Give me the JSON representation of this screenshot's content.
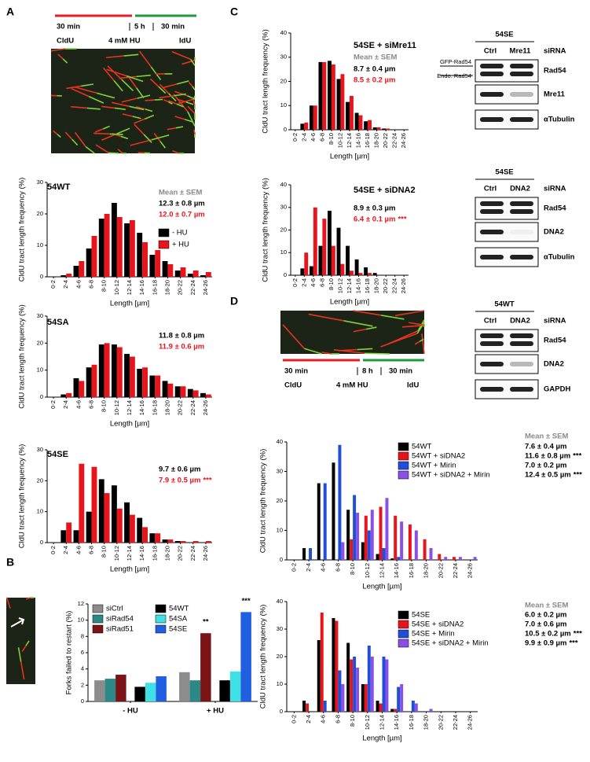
{
  "panels": [
    "A",
    "B",
    "C",
    "D"
  ],
  "schematics": [
    {
      "pulse1": "30 min",
      "treatment_time": "5 h",
      "pulse2": "30 min",
      "label1": "CldU",
      "treatment": "4 mM HU",
      "label2": "IdU"
    },
    {
      "pulse1": "30 min",
      "treatment_time": "8 h",
      "pulse2": "30 min",
      "label1": "CldU",
      "treatment": "4 mM HU",
      "label2": "IdU"
    }
  ],
  "blots": [
    {
      "title": "54SE",
      "lanes": [
        "Ctrl",
        "Mre11"
      ],
      "lane_label": "siRNA",
      "rows": [
        "Rad54",
        "Mre11",
        "αTubulin"
      ],
      "side_labels": [
        "GFP-Rad54",
        "Endo. Rad54"
      ]
    },
    {
      "title": "54SE",
      "lanes": [
        "Ctrl",
        "DNA2"
      ],
      "lane_label": "siRNA",
      "rows": [
        "Rad54",
        "DNA2",
        "αTubulin"
      ]
    },
    {
      "title": "54WT",
      "lanes": [
        "Ctrl",
        "DNA2"
      ],
      "lane_label": "siRNA",
      "rows": [
        "Rad54",
        "DNA2",
        "GAPDH"
      ]
    }
  ],
  "chart_data": [
    {
      "type": "bar",
      "title": "54WT",
      "categories": [
        "0-2",
        "2-4",
        "4-6",
        "6-8",
        "8-10",
        "10-12",
        "12-14",
        "14-16",
        "16-18",
        "18-20",
        "20-22",
        "22-24",
        "24-26"
      ],
      "series": [
        {
          "name": "- HU",
          "color": "#000000",
          "values": [
            0,
            0.5,
            3.5,
            9,
            18.5,
            23.5,
            17,
            14,
            7,
            5,
            2,
            1,
            0.5
          ]
        },
        {
          "name": "+ HU",
          "color": "#e8141c",
          "values": [
            0,
            1,
            5,
            13,
            20,
            19,
            18,
            11,
            8.5,
            4,
            3,
            2,
            1.5
          ]
        }
      ],
      "ylim": [
        0,
        30
      ],
      "yticks": [
        0,
        10,
        20,
        30
      ],
      "legend": true,
      "xlabel": "Length [µm]",
      "ylabel": "CldU tract length frequency (%)",
      "mean_header": "Mean  ± SEM",
      "means": [
        {
          "text": "12.3 ± 0.8 µm",
          "color": "#000000"
        },
        {
          "text": "12.0 ± 0.7 µm",
          "color": "#e8141c"
        }
      ]
    },
    {
      "type": "bar",
      "title": "54SA",
      "categories": [
        "0-2",
        "2-4",
        "4-6",
        "6-8",
        "8-10",
        "10-12",
        "12-14",
        "14-16",
        "16-18",
        "18-20",
        "20-22",
        "22-24",
        "24-26"
      ],
      "series": [
        {
          "color": "#000000",
          "values": [
            0,
            1,
            7,
            11,
            19.5,
            19.5,
            16,
            10.5,
            8,
            6,
            4,
            3,
            1.5
          ]
        },
        {
          "color": "#e8141c",
          "values": [
            0,
            1.5,
            6,
            12,
            20,
            18.5,
            15,
            11,
            8,
            5,
            4,
            2.5,
            1
          ]
        }
      ],
      "ylim": [
        0,
        30
      ],
      "yticks": [
        0,
        10,
        20,
        30
      ],
      "xlabel": "Length [µm]",
      "ylabel": "CldU tract length frequency (%)",
      "means": [
        {
          "text": "11.8 ± 0.8 µm",
          "color": "#000000"
        },
        {
          "text": "11.9 ± 0.6 µm",
          "color": "#e8141c"
        }
      ]
    },
    {
      "type": "bar",
      "title": "54SE",
      "categories": [
        "0-2",
        "2-4",
        "4-6",
        "6-8",
        "8-10",
        "10-12",
        "12-14",
        "14-16",
        "16-18",
        "18-20",
        "20-22",
        "22-24",
        "24-26"
      ],
      "series": [
        {
          "color": "#000000",
          "values": [
            0,
            4,
            4,
            10,
            20.5,
            18.5,
            13,
            8,
            3,
            1,
            0.5,
            0,
            0
          ]
        },
        {
          "color": "#e8141c",
          "values": [
            0,
            6.5,
            25.5,
            24.5,
            16,
            11,
            9,
            5,
            3,
            1,
            0.5,
            0.5,
            0.5
          ]
        }
      ],
      "ylim": [
        0,
        30
      ],
      "yticks": [
        0,
        10,
        20,
        30
      ],
      "xlabel": "Length [µm]",
      "ylabel": "CldU tract length frequency (%)",
      "means": [
        {
          "text": "9.7 ± 0.6 µm",
          "color": "#000000"
        },
        {
          "text": "7.9 ± 0.5 µm",
          "color": "#e8141c",
          "mark": "***"
        }
      ]
    },
    {
      "type": "bar",
      "categories": [
        "- HU",
        "+ HU"
      ],
      "series": [
        {
          "name": "siCtrl",
          "color": "#8c8c8c",
          "values": [
            2.6,
            3.6
          ]
        },
        {
          "name": "siRad54",
          "color": "#2b8a88",
          "values": [
            2.8,
            2.6
          ]
        },
        {
          "name": "siRad51",
          "color": "#7a1416",
          "values": [
            3.3,
            8.4
          ],
          "significance": [
            null,
            "**"
          ]
        },
        {
          "name": "54WT",
          "color": "#000000",
          "values": [
            1.8,
            2.6
          ]
        },
        {
          "name": "54SA",
          "color": "#3fe0e6",
          "values": [
            2.3,
            3.7
          ]
        },
        {
          "name": "54SE",
          "color": "#1f5fe0",
          "values": [
            3.1,
            11.0
          ],
          "significance": [
            null,
            "***"
          ]
        }
      ],
      "ylim": [
        0,
        12
      ],
      "yticks": [
        0,
        2,
        4,
        6,
        8,
        10,
        12
      ],
      "legend": true,
      "ylabel": "Forks failed to restart (%)"
    },
    {
      "type": "bar",
      "title": "54SE + siMre11",
      "categories": [
        "0-2",
        "2-4",
        "4-6",
        "6-8",
        "8-10",
        "10-12",
        "12-14",
        "14-16",
        "16-18",
        "18-20",
        "20-22",
        "22-24",
        "24-26"
      ],
      "series": [
        {
          "color": "#000000",
          "values": [
            0,
            2.5,
            10,
            28,
            28.5,
            21,
            11.5,
            7,
            3.5,
            1,
            0.5,
            0,
            0
          ]
        },
        {
          "color": "#e8141c",
          "values": [
            0,
            3,
            10,
            28,
            27,
            23,
            14,
            6,
            4,
            1,
            0.5,
            0,
            0
          ]
        }
      ],
      "ylim": [
        0,
        40
      ],
      "yticks": [
        0,
        10,
        20,
        30,
        40
      ],
      "xlabel": "Length [µm]",
      "ylabel": "CldU tract length frequency (%)",
      "mean_header": "Mean  ± SEM",
      "means": [
        {
          "text": "8.7 ± 0.4 µm",
          "color": "#000000"
        },
        {
          "text": "8.5 ± 0.2 µm",
          "color": "#e8141c"
        }
      ]
    },
    {
      "type": "bar",
      "title": "54SE + siDNA2",
      "categories": [
        "0-2",
        "2-4",
        "4-6",
        "6-8",
        "8-10",
        "10-12",
        "12-14",
        "14-16",
        "16-18",
        "18-20",
        "20-22",
        "22-24",
        "24-26"
      ],
      "series": [
        {
          "color": "#000000",
          "values": [
            0,
            3,
            4,
            13,
            28.5,
            21,
            13,
            7,
            3.5,
            1,
            0,
            0,
            0
          ]
        },
        {
          "color": "#e8141c",
          "values": [
            0,
            10,
            30,
            25,
            13,
            5,
            2,
            1,
            1,
            0,
            0,
            0,
            0
          ]
        }
      ],
      "ylim": [
        0,
        40
      ],
      "yticks": [
        0,
        10,
        20,
        30,
        40
      ],
      "xlabel": "Length [µm]",
      "ylabel": "CldU tract length frequency (%)",
      "means": [
        {
          "text": "8.9 ± 0.3 µm",
          "color": "#000000"
        },
        {
          "text": "6.4 ± 0.1 µm",
          "color": "#e8141c",
          "mark": "***"
        }
      ]
    },
    {
      "type": "bar",
      "categories": [
        "0-2",
        "2-4",
        "4-6",
        "6-8",
        "8-10",
        "10-12",
        "12-14",
        "14-16",
        "16-18",
        "18-20",
        "20-22",
        "22-24",
        "24-26"
      ],
      "series": [
        {
          "name": "54WT",
          "color": "#000000",
          "values": [
            0,
            4,
            26,
            33,
            17,
            6,
            2,
            0.5,
            0,
            0,
            0,
            0,
            0
          ]
        },
        {
          "name": "54WT + siDNA2",
          "color": "#e8141c",
          "values": [
            0,
            0,
            0,
            0,
            7,
            15,
            18,
            15,
            12,
            7,
            2,
            1,
            0
          ]
        },
        {
          "name": "54WT + Mirin",
          "color": "#1f4fd6",
          "values": [
            0,
            4,
            26,
            39,
            22,
            10,
            4,
            1,
            0,
            0,
            0,
            0,
            0
          ]
        },
        {
          "name": "54WT + siDNA2 + Mirin",
          "color": "#8a4fe6",
          "values": [
            0,
            0,
            0,
            6,
            16,
            17,
            21,
            13,
            10,
            4,
            1,
            1,
            1
          ]
        }
      ],
      "ylim": [
        0,
        40
      ],
      "yticks": [
        0,
        10,
        20,
        30,
        40
      ],
      "legend": true,
      "xlabel": "Length [µm]",
      "ylabel": "CldU tract length frequency (%)",
      "mean_header": "Mean ± SEM",
      "means": [
        {
          "text": "7.6 ± 0.4 µm",
          "color": "#000000"
        },
        {
          "text": "11.6 ± 0.8 µm",
          "color": "#000000",
          "mark": "***"
        },
        {
          "text": "7.0 ± 0.2 µm",
          "color": "#000000"
        },
        {
          "text": "12.4 ± 0.5 µm",
          "color": "#000000",
          "mark": "***"
        }
      ]
    },
    {
      "type": "bar",
      "categories": [
        "0-2",
        "2-4",
        "4-6",
        "6-8",
        "8-10",
        "10-12",
        "12-14",
        "14-16",
        "16-18",
        "18-20",
        "20-22",
        "22-24",
        "24-26"
      ],
      "series": [
        {
          "name": "54SE",
          "color": "#000000",
          "values": [
            0,
            4,
            26,
            34,
            25,
            10,
            4,
            1,
            0,
            0,
            0,
            0,
            0
          ]
        },
        {
          "name": "54SE + siDNA2",
          "color": "#e8141c",
          "values": [
            0,
            3,
            36,
            33,
            19,
            10,
            3,
            1,
            0,
            0,
            0,
            0,
            0
          ]
        },
        {
          "name": "54SE + Mirin",
          "color": "#1f4fd6",
          "values": [
            0,
            0,
            4,
            15,
            20,
            24,
            20,
            9,
            4,
            0,
            0,
            0,
            0
          ]
        },
        {
          "name": "54SE + siDNA2 + Mirin",
          "color": "#8a4fe6",
          "values": [
            0,
            0,
            0,
            10,
            16,
            20,
            19,
            10,
            3,
            1,
            0,
            0,
            0
          ]
        }
      ],
      "ylim": [
        0,
        40
      ],
      "yticks": [
        0,
        10,
        20,
        30,
        40
      ],
      "legend": true,
      "xlabel": "Length [µm]",
      "ylabel": "CldU tract length frequency (%)",
      "mean_header": "Mean ± SEM",
      "means": [
        {
          "text": "6.0 ± 0.2 µm",
          "color": "#000000"
        },
        {
          "text": "7.0 ± 0.6 µm",
          "color": "#000000"
        },
        {
          "text": "10.5 ± 0.2 µm",
          "color": "#000000",
          "mark": "***"
        },
        {
          "text": "9.9 ± 0.9 µm",
          "color": "#000000",
          "mark": "***"
        }
      ]
    }
  ]
}
